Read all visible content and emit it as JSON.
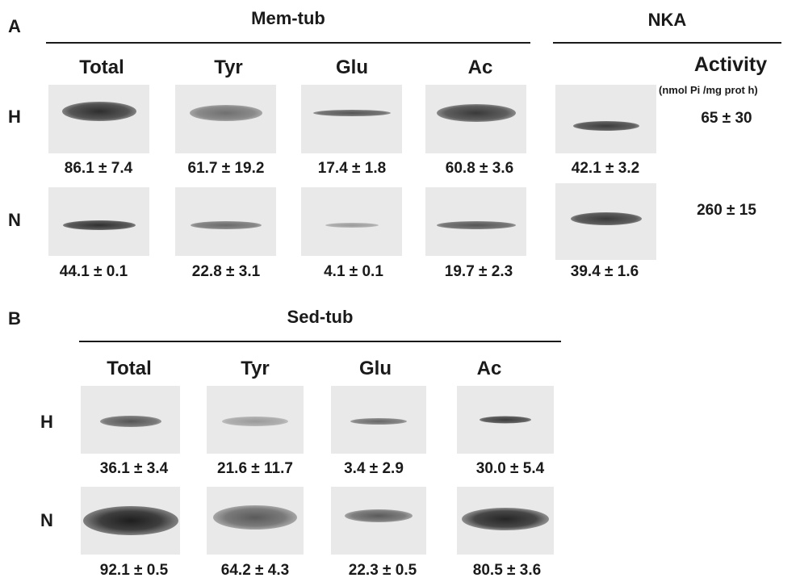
{
  "panel_a": {
    "letter": "A",
    "mem_tub_title": "Mem-tub",
    "nka_title": "NKA",
    "columns": [
      "Total",
      "Tyr",
      "Glu",
      "Ac"
    ],
    "activity_header": "Activity",
    "activity_units": "(nmol Pi /mg prot h)",
    "rows": [
      {
        "label": "H",
        "values": [
          "86.1 ± 7.4",
          "61.7 ± 19.2",
          "17.4 ± 1.8",
          "60.8 ± 3.6"
        ],
        "nka_value": "42.1 ± 3.2",
        "activity": "65 ± 30"
      },
      {
        "label": "N",
        "values": [
          "44.1 ± 0.1",
          "22.8 ± 3.1",
          "4.1 ± 0.1",
          "19.7 ± 2.3"
        ],
        "nka_value": "39.4 ± 1.6",
        "activity": "260 ± 15"
      }
    ]
  },
  "panel_b": {
    "letter": "B",
    "sed_tub_title": "Sed-tub",
    "columns": [
      "Total",
      "Tyr",
      "Glu",
      "Ac"
    ],
    "rows": [
      {
        "label": "H",
        "values": [
          "36.1 ± 3.4",
          "21.6 ± 11.7",
          "3.4 ± 2.9",
          "30.0 ± 5.4"
        ]
      },
      {
        "label": "N",
        "values": [
          "92.1 ± 0.5",
          "64.2 ± 4.3",
          "22.3 ± 0.5",
          "80.5 ± 3.6"
        ]
      }
    ]
  }
}
